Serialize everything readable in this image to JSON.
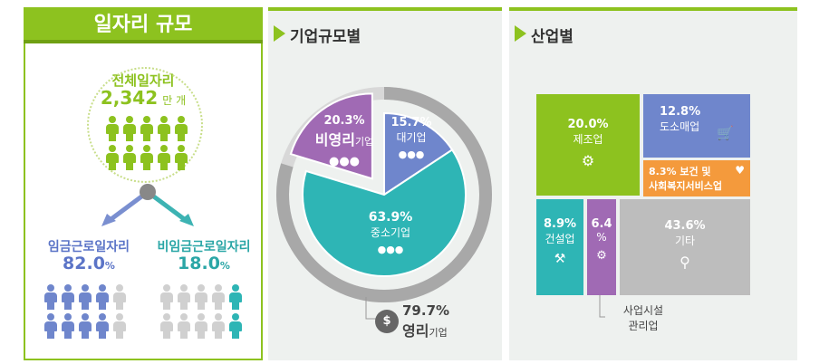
{
  "left": {
    "title": "일자리 규모",
    "total_label": "전체일자리",
    "total_value": "2,342",
    "total_unit": "만 개",
    "wage_label": "임금근로일자리",
    "wage_value": "82.0",
    "nonwage_label": "비임금근로일자리",
    "nonwage_value": "18.0",
    "pct_sign": "%"
  },
  "mid": {
    "title": "기업규모별",
    "nonprofit_pct": "20.3%",
    "nonprofit_big": "비영리",
    "nonprofit_small": "기업",
    "large_pct": "15.7%",
    "large_label": "대기업",
    "sme_pct": "63.9%",
    "sme_label": "중소기업",
    "profit_pct": "79.7%",
    "profit_big": "영리",
    "profit_small": "기업"
  },
  "right": {
    "title": "산업별",
    "mfg_pct": "20.0%",
    "mfg_label": "제조업",
    "retail_pct": "12.8%",
    "retail_label": "도소매업",
    "health_pct": "8.3%",
    "health_label1": "보건 및",
    "health_label2": "사회복지서비스업",
    "constr_pct": "8.9%",
    "constr_label": "건설업",
    "facility_pct": "6.4",
    "facility_sign": "%",
    "facility_label1": "사업시설",
    "facility_label2": "관리업",
    "other_pct": "43.6%",
    "other_label": "기타"
  },
  "colors": {
    "green": "#8dc21f",
    "purple": "#a06ab4",
    "blue": "#6f86cc",
    "teal": "#2eb5b5",
    "orange": "#f49a3c",
    "gray": "#bdbdbd"
  },
  "chart_data": [
    {
      "type": "pie",
      "title": "기업규모별",
      "categories": [
        "비영리기업",
        "대기업",
        "중소기업"
      ],
      "values": [
        20.3,
        15.7,
        63.9
      ],
      "outer_ring": {
        "label": "영리기업",
        "value": 79.7
      }
    },
    {
      "type": "treemap",
      "title": "산업별",
      "categories": [
        "제조업",
        "도소매업",
        "보건 및 사회복지서비스업",
        "건설업",
        "사업시설관리업",
        "기타"
      ],
      "values": [
        20.0,
        12.8,
        8.3,
        8.9,
        6.4,
        43.6
      ]
    },
    {
      "type": "bar",
      "title": "일자리 규모",
      "categories": [
        "임금근로일자리",
        "비임금근로일자리"
      ],
      "values": [
        82.0,
        18.0
      ],
      "total": 2342,
      "total_unit": "만 개"
    }
  ]
}
